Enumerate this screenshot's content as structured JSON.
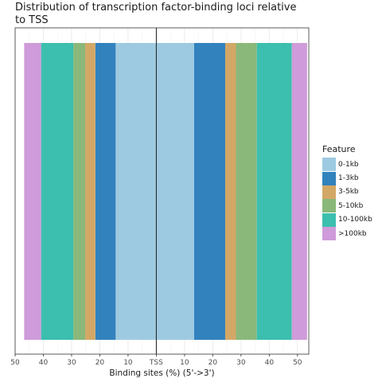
{
  "chart_data": {
    "type": "bar",
    "orientation": "horizontal-stacked-diverging",
    "title": "Distribution of transcription factor-binding loci relative to TSS",
    "xlabel": "Binding sites (%) (5'->3')",
    "ylabel": "",
    "xlim": [
      -50,
      54
    ],
    "x_ticks": [
      -50,
      -40,
      -30,
      -20,
      -10,
      0,
      10,
      20,
      30,
      40,
      50
    ],
    "x_tick_labels": [
      "50",
      "40",
      "30",
      "20",
      "10",
      "TSS",
      "10",
      "20",
      "30",
      "40",
      "50"
    ],
    "grid": true,
    "legend_position": "right",
    "legend_title": "Feature",
    "series": [
      {
        "name": "0-1kb",
        "color": "#9ECAE1",
        "upstream": 14.4,
        "downstream": 13.4
      },
      {
        "name": "1-3kb",
        "color": "#3182BD",
        "upstream": 7.2,
        "downstream": 11.0
      },
      {
        "name": "3-5kb",
        "color": "#D3A866",
        "upstream": 3.6,
        "downstream": 3.8
      },
      {
        "name": "5-10kb",
        "color": "#8AB87A",
        "upstream": 4.2,
        "downstream": 7.4
      },
      {
        "name": "10-100kb",
        "color": "#3CBFAE",
        "upstream": 11.4,
        "downstream": 12.4
      },
      {
        "name": ">100kb",
        "color": "#CF9BDA",
        "upstream": 6.0,
        "downstream": 5.4
      }
    ]
  }
}
